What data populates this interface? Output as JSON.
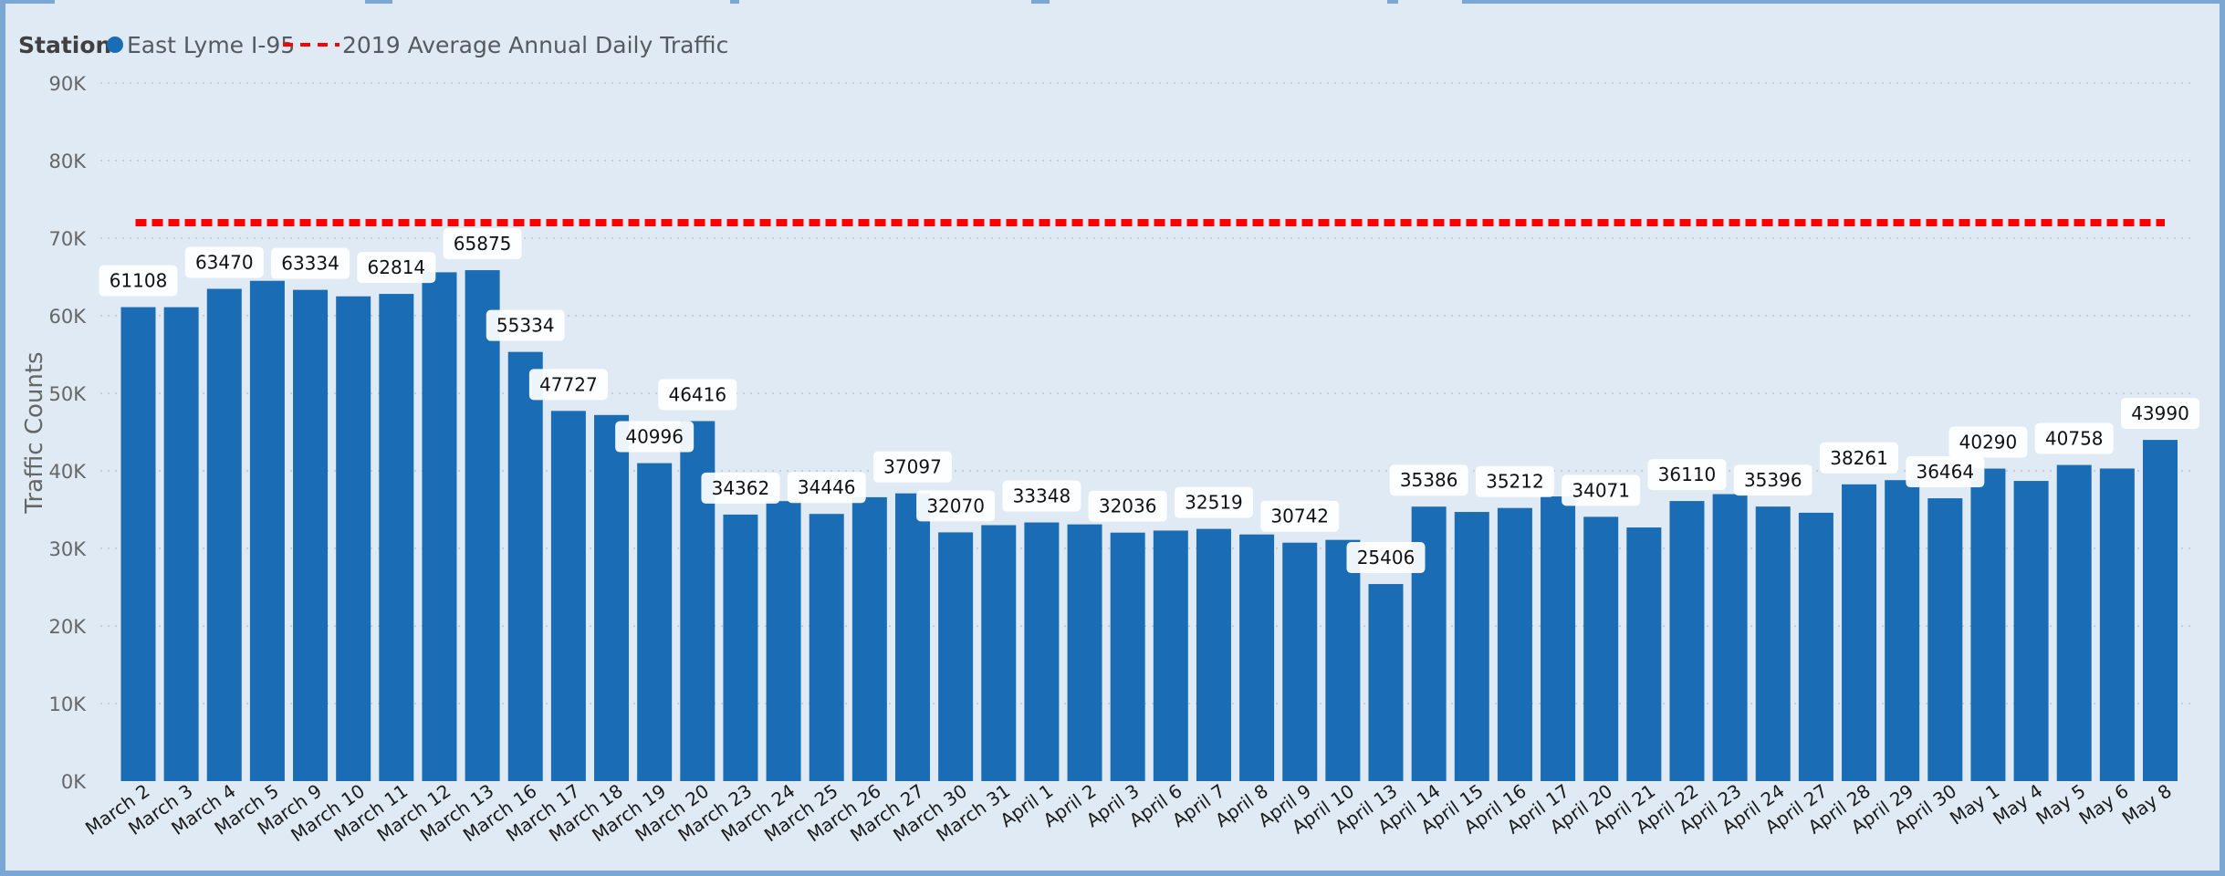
{
  "legend": {
    "title": "Station",
    "items": [
      {
        "label": "East Lyme I-95",
        "color": "#1a6db5",
        "kind": "dot"
      },
      {
        "label": "2019 Average Annual Daily Traffic",
        "color": "#ff0000",
        "kind": "dashed-line"
      }
    ]
  },
  "chart_data": {
    "type": "bar",
    "title": "",
    "xlabel": "",
    "ylabel": "Traffic Counts",
    "ylim": [
      0,
      90000
    ],
    "yticks": [
      "0K",
      "10K",
      "20K",
      "30K",
      "40K",
      "50K",
      "60K",
      "70K",
      "80K",
      "90K"
    ],
    "grid": "horizontal dotted",
    "legend_position": "top-left",
    "categories": [
      "March 2",
      "March 3",
      "March 4",
      "March 5",
      "March 9",
      "March 10",
      "March 11",
      "March 12",
      "March 13",
      "March 16",
      "March 17",
      "March 18",
      "March 19",
      "March 20",
      "March 23",
      "March 24",
      "March 25",
      "March 26",
      "March 27",
      "March 30",
      "March 31",
      "April 1",
      "April 2",
      "April 3",
      "April 6",
      "April 7",
      "April 8",
      "April 9",
      "April 10",
      "April 13",
      "April 14",
      "April 15",
      "April 16",
      "April 17",
      "April 20",
      "April 21",
      "April 22",
      "April 23",
      "April 24",
      "April 27",
      "April 28",
      "April 29",
      "April 30",
      "May 1",
      "May 4",
      "May 5",
      "May 6",
      "May 8"
    ],
    "series": [
      {
        "name": "East Lyme I-95",
        "color": "#1a6db5",
        "values": [
          61108,
          61100,
          63470,
          64500,
          63334,
          62500,
          62814,
          65600,
          65875,
          55334,
          47727,
          47200,
          40996,
          46416,
          34362,
          36100,
          34446,
          36600,
          37097,
          32070,
          33000,
          33348,
          33100,
          32036,
          32300,
          32519,
          31800,
          30742,
          31100,
          25406,
          35386,
          34700,
          35212,
          36700,
          34071,
          32700,
          36110,
          37000,
          35396,
          34600,
          38261,
          38800,
          36464,
          40290,
          38700,
          40758,
          40300,
          43990
        ]
      },
      {
        "name": "2019 Average Annual Daily Traffic",
        "type": "reference-line",
        "color": "#ff0000",
        "value": 72000
      }
    ],
    "data_labels": [
      {
        "category": "March 2",
        "text": "61108"
      },
      {
        "category": "March 4",
        "text": "63470"
      },
      {
        "category": "March 9",
        "text": "63334"
      },
      {
        "category": "March 11",
        "text": "62814"
      },
      {
        "category": "March 13",
        "text": "65875"
      },
      {
        "category": "March 16",
        "text": "55334"
      },
      {
        "category": "March 17",
        "text": "47727"
      },
      {
        "category": "March 19",
        "text": "40996"
      },
      {
        "category": "March 20",
        "text": "46416"
      },
      {
        "category": "March 23",
        "text": "34362"
      },
      {
        "category": "March 25",
        "text": "34446"
      },
      {
        "category": "March 27",
        "text": "37097"
      },
      {
        "category": "March 30",
        "text": "32070"
      },
      {
        "category": "April 1",
        "text": "33348"
      },
      {
        "category": "April 3",
        "text": "32036"
      },
      {
        "category": "April 7",
        "text": "32519"
      },
      {
        "category": "April 9",
        "text": "30742"
      },
      {
        "category": "April 13",
        "text": "25406"
      },
      {
        "category": "April 14",
        "text": "35386"
      },
      {
        "category": "April 16",
        "text": "35212"
      },
      {
        "category": "April 20",
        "text": "34071"
      },
      {
        "category": "April 22",
        "text": "36110"
      },
      {
        "category": "April 24",
        "text": "35396"
      },
      {
        "category": "April 28",
        "text": "38261"
      },
      {
        "category": "April 30",
        "text": "36464"
      },
      {
        "category": "May 1",
        "text": "40290"
      },
      {
        "category": "May 5",
        "text": "40758"
      },
      {
        "category": "May 8",
        "text": "43990"
      }
    ]
  }
}
